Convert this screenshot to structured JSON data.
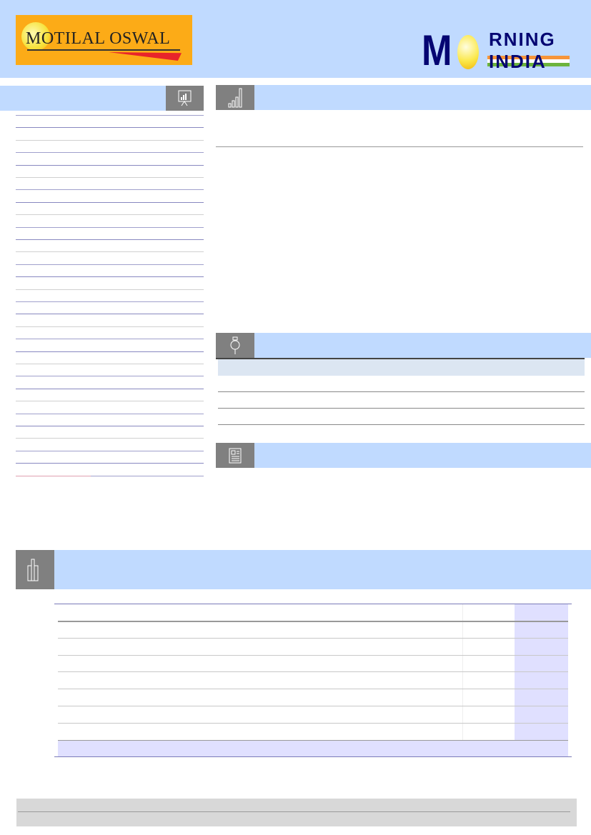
{
  "header": {
    "left_logo": {
      "text": "MOTILAL OSWAL",
      "brand_color": "#fcab17",
      "accent": "#e8242a"
    },
    "right_logo": {
      "letter_m": "M",
      "text_top": "RNING",
      "text_bottom": "INDIA",
      "brand_color": "#050572"
    }
  },
  "sections": [
    {
      "name": "sidebar",
      "icon": "presentation-chart-icon"
    },
    {
      "name": "market",
      "icon": "signal-bars-icon"
    },
    {
      "name": "stocks",
      "icon": "paperclip-tag-icon"
    },
    {
      "name": "news",
      "icon": "newspaper-icon"
    },
    {
      "name": "table",
      "icon": "bar-chart-icon"
    }
  ],
  "colors": {
    "header_bg": "#c0daff",
    "icon_bg": "#808080",
    "table_highlight": "#e0e0ff",
    "footer_bg": "#d8d8d8"
  }
}
